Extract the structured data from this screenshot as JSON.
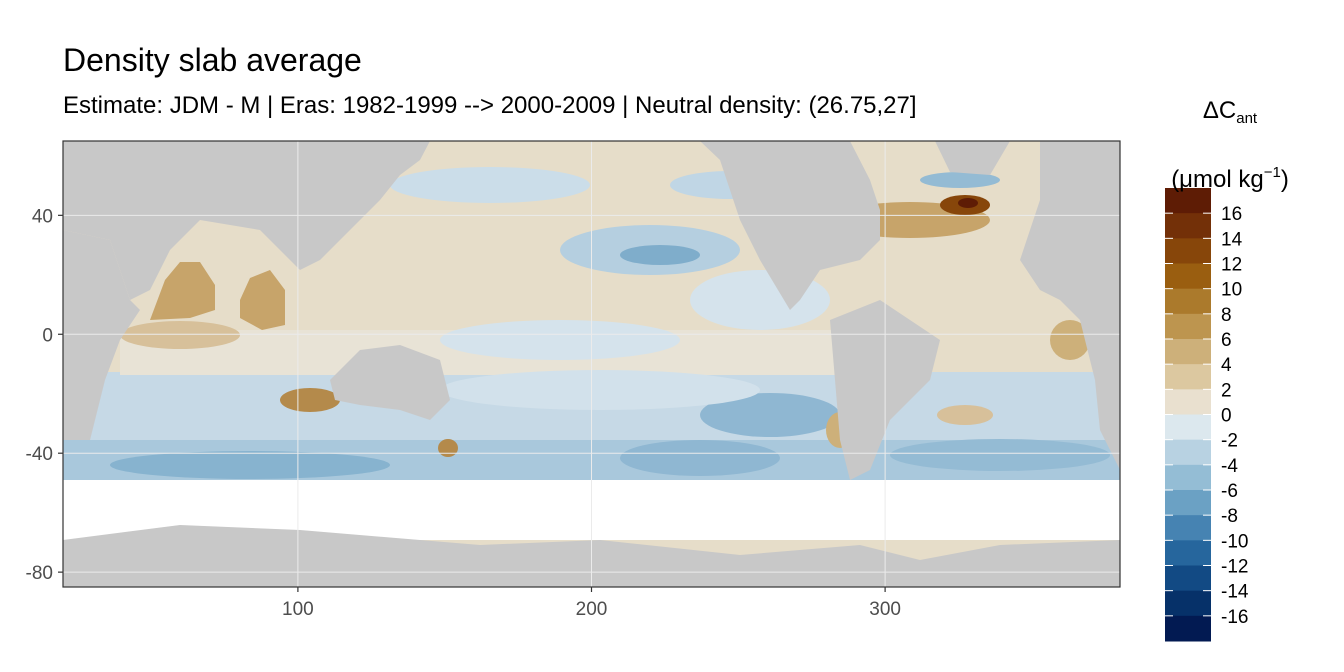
{
  "title": "Density slab average",
  "subtitle": "Estimate: JDM - M | Eras: 1982-1999 --> 2000-2009 | Neutral density: (26.75,27]",
  "chart_data": {
    "type": "heatmap",
    "x_ticks": [
      100,
      200,
      300
    ],
    "y_ticks": [
      40,
      0,
      -40,
      -80
    ],
    "xlim": [
      20,
      380
    ],
    "ylim": [
      -85,
      65
    ],
    "grid": true,
    "land_color": "#c8c8c8",
    "legend": {
      "title_main": "ΔC",
      "title_sub": "ant",
      "title_unit_prefix": "(μmol kg",
      "title_unit_sup": "−1",
      "title_unit_suffix": ")",
      "placement": "right",
      "labels": [
        "16",
        "14",
        "12",
        "10",
        "8",
        "6",
        "4",
        "2",
        "0",
        "-2",
        "-4",
        "-6",
        "-8",
        "-10",
        "-12",
        "-14",
        "-16"
      ],
      "colors": [
        "#5e1c05",
        "#733008",
        "#87460a",
        "#9a5e10",
        "#ab7a2c",
        "#bd954f",
        "#cdb07a",
        "#dcc8a0",
        "#e9e0cf",
        "#dce8ee",
        "#b8d2e2",
        "#94bdd5",
        "#6ba1c4",
        "#4683b2",
        "#26669d",
        "#124a84",
        "#063169",
        "#021a52"
      ]
    }
  }
}
